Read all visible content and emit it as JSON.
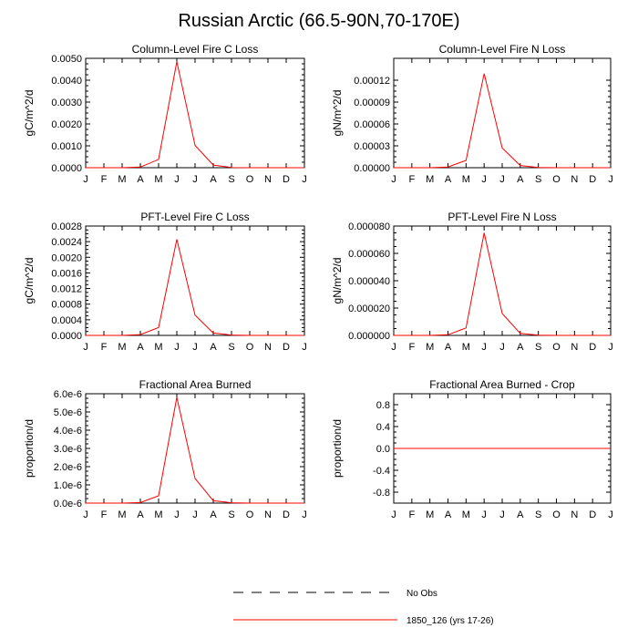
{
  "figure_title": "Russian Arctic (66.5-90N,70-170E)",
  "months": [
    "J",
    "F",
    "M",
    "A",
    "M",
    "J",
    "J",
    "A",
    "S",
    "O",
    "N",
    "D",
    "J"
  ],
  "legend": [
    {
      "label": "No Obs",
      "style": "dashed",
      "color": "#000000"
    },
    {
      "label": "1850_126 (yrs 17-26)",
      "style": "solid",
      "color": "#ff0000"
    }
  ],
  "chart_data": [
    {
      "type": "line",
      "title": "Column-Level Fire C Loss",
      "ylabel": "gC/m^2/d",
      "ylim": [
        0,
        0.005
      ],
      "yticks": [
        "0.0000",
        "0.0010",
        "0.0020",
        "0.0030",
        "0.0040",
        "0.0050"
      ],
      "x": [
        "J",
        "F",
        "M",
        "A",
        "M",
        "J",
        "J",
        "A",
        "S",
        "O",
        "N",
        "D",
        "J"
      ],
      "series": [
        {
          "name": "1850_126 (yrs 17-26)",
          "color": "#ff0000",
          "values": [
            0,
            0,
            0,
            3e-05,
            0.00038,
            0.00485,
            0.00102,
            0.00012,
            1e-05,
            0,
            0,
            0,
            0
          ]
        }
      ]
    },
    {
      "type": "line",
      "title": "Column-Level Fire N Loss",
      "ylabel": "gN/m^2/d",
      "ylim": [
        0,
        0.00015
      ],
      "yticks": [
        "0.00000",
        "0.00003",
        "0.00006",
        "0.00009",
        "0.00012"
      ],
      "x": [
        "J",
        "F",
        "M",
        "A",
        "M",
        "J",
        "J",
        "A",
        "S",
        "O",
        "N",
        "D",
        "J"
      ],
      "series": [
        {
          "name": "1850_126 (yrs 17-26)",
          "color": "#ff0000",
          "values": [
            0,
            0,
            0,
            1e-06,
            1e-05,
            0.000129,
            2.7e-05,
            3e-06,
            3e-07,
            0,
            0,
            0,
            0
          ]
        }
      ]
    },
    {
      "type": "line",
      "title": "PFT-Level Fire C Loss",
      "ylabel": "gC/m^2/d",
      "ylim": [
        0,
        0.0028
      ],
      "yticks": [
        "0.0000",
        "0.0004",
        "0.0008",
        "0.0012",
        "0.0016",
        "0.0020",
        "0.0024",
        "0.0028"
      ],
      "x": [
        "J",
        "F",
        "M",
        "A",
        "M",
        "J",
        "J",
        "A",
        "S",
        "O",
        "N",
        "D",
        "J"
      ],
      "series": [
        {
          "name": "1850_126 (yrs 17-26)",
          "color": "#ff0000",
          "values": [
            0,
            0,
            0,
            2e-05,
            0.0002,
            0.00246,
            0.00052,
            6e-05,
            1e-05,
            0,
            0,
            0,
            0
          ]
        }
      ]
    },
    {
      "type": "line",
      "title": "PFT-Level Fire N Loss",
      "ylabel": "gN/m^2/d",
      "ylim": [
        0,
        8e-05
      ],
      "yticks": [
        "0.000000",
        "0.000020",
        "0.000040",
        "0.000060",
        "0.000080"
      ],
      "x": [
        "J",
        "F",
        "M",
        "A",
        "M",
        "J",
        "J",
        "A",
        "S",
        "O",
        "N",
        "D",
        "J"
      ],
      "series": [
        {
          "name": "1850_126 (yrs 17-26)",
          "color": "#ff0000",
          "values": [
            0,
            0,
            0,
            5e-07,
            5.5e-06,
            7.5e-05,
            1.6e-05,
            1.5e-06,
            2e-07,
            0,
            0,
            0,
            0
          ]
        }
      ]
    },
    {
      "type": "line",
      "title": "Fractional Area Burned",
      "ylabel": "proportion/d",
      "ylim": [
        0,
        6e-06
      ],
      "yticks": [
        "0.0e-6",
        "1.0e-6",
        "2.0e-6",
        "3.0e-6",
        "4.0e-6",
        "5.0e-6",
        "6.0e-6"
      ],
      "x": [
        "J",
        "F",
        "M",
        "A",
        "M",
        "J",
        "J",
        "A",
        "S",
        "O",
        "N",
        "D",
        "J"
      ],
      "series": [
        {
          "name": "1850_126 (yrs 17-26)",
          "color": "#ff0000",
          "values": [
            0,
            0,
            0,
            3e-08,
            4e-07,
            5.8e-06,
            1.35e-06,
            1.3e-07,
            2e-08,
            0,
            0,
            0,
            0
          ]
        }
      ]
    },
    {
      "type": "line",
      "title": "Fractional Area Burned - Crop",
      "ylabel": "proportion/d",
      "ylim": [
        -1,
        1
      ],
      "yticks": [
        "-0.8",
        "-0.4",
        "0.0",
        "0.4",
        "0.8"
      ],
      "yticks_values": [
        -0.8,
        -0.4,
        0,
        0.4,
        0.8
      ],
      "x": [
        "J",
        "F",
        "M",
        "A",
        "M",
        "J",
        "J",
        "A",
        "S",
        "O",
        "N",
        "D",
        "J"
      ],
      "series": [
        {
          "name": "1850_126 (yrs 17-26)",
          "color": "#ff0000",
          "values": [
            0,
            0,
            0,
            0,
            0,
            0,
            0,
            0,
            0,
            0,
            0,
            0,
            0
          ]
        }
      ]
    }
  ]
}
